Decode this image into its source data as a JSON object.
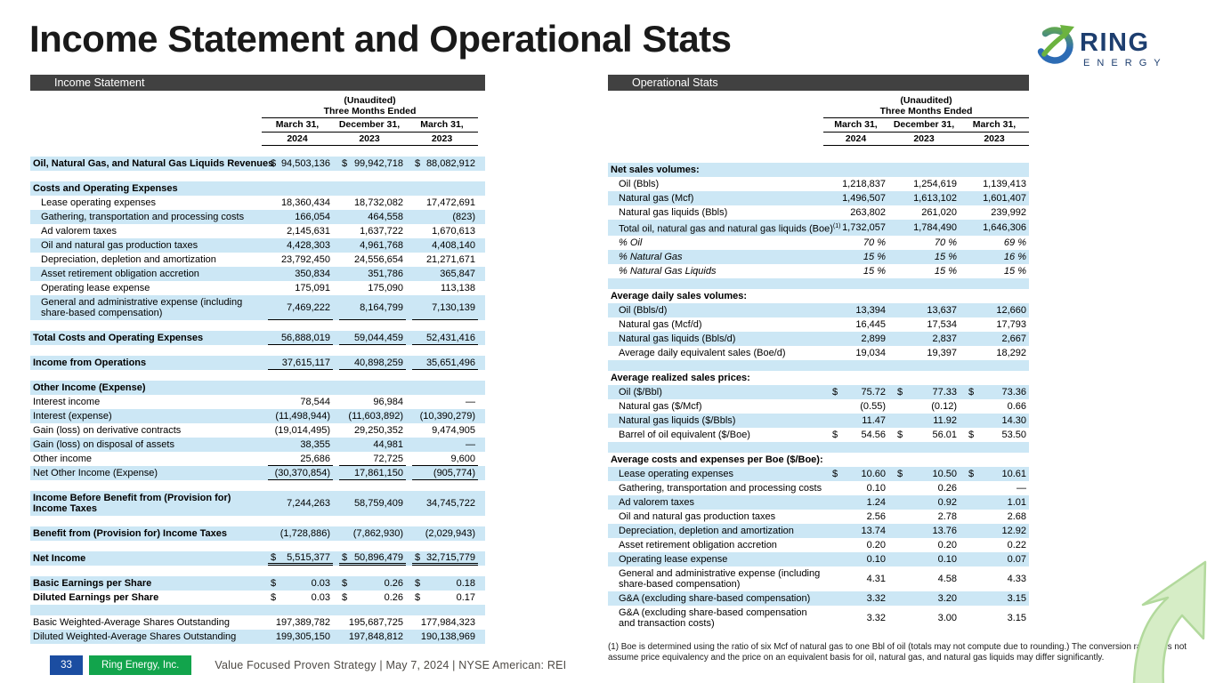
{
  "slide": {
    "title": "Income Statement and Operational Stats",
    "logo": {
      "brand": "RING",
      "sub": "E N E R G Y"
    },
    "footnote": "(1) Boe is determined using the ratio of six Mcf of natural gas to one Bbl of oil (totals may not compute due to rounding.) The conversion ratio does not assume price equivalency and the price on an equivalent basis for oil, natural gas, and natural gas liquids may differ significantly.",
    "footer": {
      "page_number": "33",
      "company": "Ring Energy, Inc.",
      "tagline": "Value Focused Proven Strategy  | May 7, 2024 |  NYSE American: REI"
    }
  },
  "colors": {
    "stripe": "#cce7f5",
    "bar": "#414141",
    "accent_blue": "#1b4da1",
    "accent_green": "#12a44c",
    "navy": "#1d3e6f",
    "logo_green": "#6cb33f",
    "logo_blue": "#2d6cb4",
    "arrow_fill": "#d6edc6",
    "arrow_edge": "#b2d99c"
  },
  "income_table": {
    "section_title": "Income Statement",
    "header": {
      "unaudited": "(Unaudited)",
      "period": "Three Months Ended",
      "dates": [
        "March 31,",
        "December 31,",
        "March 31,"
      ],
      "years": [
        "2024",
        "2023",
        "2023"
      ]
    },
    "rows": [
      {
        "label": "Oil, Natural Gas, and Natural Gas Liquids Revenues",
        "bold": true,
        "nowrap": true,
        "pre": [
          "$",
          "$",
          "$"
        ],
        "vals": [
          "94,503,136",
          "99,942,718",
          "88,082,912"
        ]
      },
      {
        "type": "spacer"
      },
      {
        "label": "Costs and Operating Expenses",
        "bold": true
      },
      {
        "label": "Lease operating expenses",
        "indent": true,
        "vals": [
          "18,360,434",
          "18,732,082",
          "17,472,691"
        ]
      },
      {
        "label": "Gathering, transportation and processing costs",
        "indent": true,
        "vals": [
          "166,054",
          "464,558",
          "(823)"
        ]
      },
      {
        "label": "Ad valorem taxes",
        "indent": true,
        "vals": [
          "2,145,631",
          "1,637,722",
          "1,670,613"
        ]
      },
      {
        "label": "Oil and natural gas production taxes",
        "indent": true,
        "vals": [
          "4,428,303",
          "4,961,768",
          "4,408,140"
        ]
      },
      {
        "label": "Depreciation, depletion and amortization",
        "indent": true,
        "vals": [
          "23,792,450",
          "24,556,654",
          "21,271,671"
        ]
      },
      {
        "label": "Asset retirement obligation accretion",
        "indent": true,
        "vals": [
          "350,834",
          "351,786",
          "365,847"
        ]
      },
      {
        "label": "Operating lease expense",
        "indent": true,
        "vals": [
          "175,091",
          "175,090",
          "113,138"
        ]
      },
      {
        "label": "General and administrative expense (including share-based compensation)",
        "indent": true,
        "ul": "single",
        "vals": [
          "7,469,222",
          "8,164,799",
          "7,130,139"
        ]
      },
      {
        "type": "spacer"
      },
      {
        "label": "Total Costs and Operating Expenses",
        "bold": true,
        "ul": "single",
        "vals": [
          "56,888,019",
          "59,044,459",
          "52,431,416"
        ]
      },
      {
        "type": "spacer"
      },
      {
        "label": "Income from Operations",
        "bold": true,
        "ul": "single",
        "vals": [
          "37,615,117",
          "40,898,259",
          "35,651,496"
        ]
      },
      {
        "type": "spacer"
      },
      {
        "label": "Other Income (Expense)",
        "bold": true
      },
      {
        "label": "Interest income",
        "vals": [
          "78,544",
          "96,984",
          "—"
        ]
      },
      {
        "label": "Interest (expense)",
        "vals": [
          "(11,498,944)",
          "(11,603,892)",
          "(10,390,279)"
        ]
      },
      {
        "label": "Gain (loss) on derivative contracts",
        "vals": [
          "(19,014,495)",
          "29,250,352",
          "9,474,905"
        ]
      },
      {
        "label": "Gain (loss) on disposal of assets",
        "vals": [
          "38,355",
          "44,981",
          "—"
        ]
      },
      {
        "label": "Other income",
        "ul": "single",
        "vals": [
          "25,686",
          "72,725",
          "9,600"
        ]
      },
      {
        "label": "Net Other Income (Expense)",
        "ul": "single",
        "vals": [
          "(30,370,854)",
          "17,861,150",
          "(905,774)"
        ]
      },
      {
        "type": "spacer"
      },
      {
        "label": "Income Before Benefit from (Provision for) Income Taxes",
        "bold": true,
        "vals": [
          "7,244,263",
          "58,759,409",
          "34,745,722"
        ]
      },
      {
        "type": "spacer"
      },
      {
        "label": "Benefit from (Provision for) Income Taxes",
        "bold": true,
        "vals": [
          "(1,728,886)",
          "(7,862,930)",
          "(2,029,943)"
        ]
      },
      {
        "type": "spacer"
      },
      {
        "label": "Net Income",
        "bold": true,
        "ul": "double",
        "pre": [
          "$",
          "$",
          "$"
        ],
        "vals": [
          "5,515,377",
          "50,896,479",
          "32,715,779"
        ]
      },
      {
        "type": "spacer"
      },
      {
        "label": "Basic Earnings per Share",
        "bold": true,
        "pre": [
          "$",
          "$",
          "$"
        ],
        "vals": [
          "0.03",
          "0.26",
          "0.18"
        ]
      },
      {
        "label": "Diluted Earnings per Share",
        "bold": true,
        "pre": [
          "$",
          "$",
          "$"
        ],
        "vals": [
          "0.03",
          "0.26",
          "0.17"
        ]
      },
      {
        "type": "spacer"
      },
      {
        "label": "Basic Weighted-Average Shares Outstanding",
        "vals": [
          "197,389,782",
          "195,687,725",
          "177,984,323"
        ]
      },
      {
        "label": "Diluted Weighted-Average Shares Outstanding",
        "vals": [
          "199,305,150",
          "197,848,812",
          "190,138,969"
        ]
      }
    ]
  },
  "ops_table": {
    "section_title": "Operational Stats",
    "header": {
      "unaudited": "(Unaudited)",
      "period": "Three Months Ended",
      "dates": [
        "March 31,",
        "December 31,",
        "March 31,"
      ],
      "years": [
        "2024",
        "2023",
        "2023"
      ]
    },
    "rows": [
      {
        "label": "Net sales volumes:",
        "bold": true
      },
      {
        "label": "Oil (Bbls)",
        "indent": true,
        "vals": [
          "1,218,837",
          "1,254,619",
          "1,139,413"
        ]
      },
      {
        "label": "Natural gas (Mcf)",
        "indent": true,
        "vals": [
          "1,496,507",
          "1,613,102",
          "1,601,407"
        ]
      },
      {
        "label": "Natural gas liquids (Bbls)",
        "indent": true,
        "vals": [
          "263,802",
          "261,020",
          "239,992"
        ]
      },
      {
        "label": "Total oil, natural gas and natural gas liquids (Boe)",
        "sup": "(1)",
        "indent": true,
        "nowrap": true,
        "vals": [
          "1,732,057",
          "1,784,490",
          "1,646,306"
        ]
      },
      {
        "label": "% Oil",
        "italic": true,
        "indent": true,
        "vals": [
          "70 %",
          "70 %",
          "69 %"
        ]
      },
      {
        "label": "% Natural Gas",
        "italic": true,
        "indent": true,
        "vals": [
          "15 %",
          "15 %",
          "16 %"
        ]
      },
      {
        "label": "% Natural Gas Liquids",
        "italic": true,
        "indent": true,
        "vals": [
          "15 %",
          "15 %",
          "15 %"
        ]
      },
      {
        "type": "spacer"
      },
      {
        "label": "Average daily sales volumes:",
        "bold": true
      },
      {
        "label": "Oil (Bbls/d)",
        "indent": true,
        "vals": [
          "13,394",
          "13,637",
          "12,660"
        ]
      },
      {
        "label": "Natural gas (Mcf/d)",
        "indent": true,
        "vals": [
          "16,445",
          "17,534",
          "17,793"
        ]
      },
      {
        "label": "Natural gas liquids (Bbls/d)",
        "indent": true,
        "vals": [
          "2,899",
          "2,837",
          "2,667"
        ]
      },
      {
        "label": "Average daily equivalent sales (Boe/d)",
        "indent": true,
        "vals": [
          "19,034",
          "19,397",
          "18,292"
        ]
      },
      {
        "type": "spacer"
      },
      {
        "label": "Average realized sales prices:",
        "bold": true
      },
      {
        "label": "Oil ($/Bbl)",
        "indent": true,
        "pre": [
          "$",
          "$",
          "$"
        ],
        "vals": [
          "75.72",
          "77.33",
          "73.36"
        ]
      },
      {
        "label": "Natural gas ($/Mcf)",
        "indent": true,
        "vals": [
          "(0.55)",
          "(0.12)",
          "0.66"
        ]
      },
      {
        "label": "Natural gas liquids ($/Bbls)",
        "indent": true,
        "vals": [
          "11.47",
          "11.92",
          "14.30"
        ]
      },
      {
        "label": "Barrel of oil equivalent ($/Boe)",
        "indent": true,
        "pre": [
          "$",
          "$",
          "$"
        ],
        "vals": [
          "54.56",
          "56.01",
          "53.50"
        ]
      },
      {
        "type": "spacer"
      },
      {
        "label": "Average costs and expenses per Boe ($/Boe):",
        "bold": true
      },
      {
        "label": "Lease operating expenses",
        "indent": true,
        "pre": [
          "$",
          "$",
          "$"
        ],
        "vals": [
          "10.60",
          "10.50",
          "10.61"
        ]
      },
      {
        "label": "Gathering, transportation and processing costs",
        "indent": true,
        "vals": [
          "0.10",
          "0.26",
          "—"
        ]
      },
      {
        "label": "Ad valorem taxes",
        "indent": true,
        "vals": [
          "1.24",
          "0.92",
          "1.01"
        ]
      },
      {
        "label": "Oil and natural gas production taxes",
        "indent": true,
        "vals": [
          "2.56",
          "2.78",
          "2.68"
        ]
      },
      {
        "label": "Depreciation, depletion and amortization",
        "indent": true,
        "vals": [
          "13.74",
          "13.76",
          "12.92"
        ]
      },
      {
        "label": "Asset retirement obligation accretion",
        "indent": true,
        "vals": [
          "0.20",
          "0.20",
          "0.22"
        ]
      },
      {
        "label": "Operating lease expense",
        "indent": true,
        "vals": [
          "0.10",
          "0.10",
          "0.07"
        ]
      },
      {
        "label": "General and administrative expense (including share-based compensation)",
        "indent": true,
        "vals": [
          "4.31",
          "4.58",
          "4.33"
        ]
      },
      {
        "label": "G&A (excluding share-based compensation)",
        "indent": true,
        "vals": [
          "3.32",
          "3.20",
          "3.15"
        ]
      },
      {
        "label": "G&A (excluding share-based compensation and transaction costs)",
        "indent": true,
        "vals": [
          "3.32",
          "3.00",
          "3.15"
        ]
      }
    ]
  }
}
